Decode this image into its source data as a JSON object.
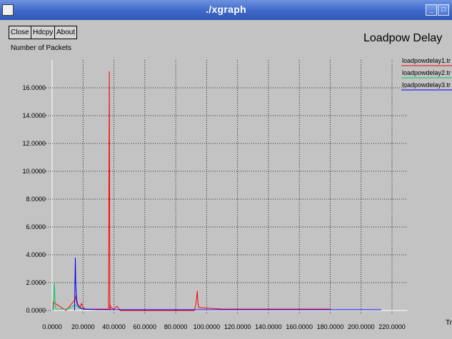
{
  "window": {
    "title": "./xgraph"
  },
  "toolbar": {
    "close_label": "Close",
    "hardcopy_label": "Hdcpy",
    "about_label": "About"
  },
  "chart_data": {
    "type": "line",
    "title": "Loadpow Delay",
    "ylabel": "Number of Packets",
    "xlabel": "Tr",
    "xlim": [
      0,
      220
    ],
    "ylim": [
      0,
      18
    ],
    "x_ticks": [
      "0.0000",
      "20.0000",
      "40.0000",
      "60.0000",
      "80.0000",
      "100.0000",
      "120.0000",
      "140.0000",
      "160.0000",
      "180.0000",
      "200.0000",
      "220.0000"
    ],
    "y_ticks": [
      "0.0000",
      "2.0000",
      "4.0000",
      "6.0000",
      "8.0000",
      "10.0000",
      "12.0000",
      "14.0000",
      "16.0000"
    ],
    "grid": true,
    "legend_position": "right",
    "series": [
      {
        "name": "loadpowdelay1.tr",
        "color": "#ff0000",
        "x": [
          0.5,
          0.6,
          9,
          15,
          15.5,
          16,
          17,
          18,
          19,
          20,
          22,
          25,
          30,
          35,
          36,
          36.5,
          37,
          37.4,
          37.6,
          38,
          40,
          42,
          44,
          92,
          93,
          94,
          94.3,
          95,
          96,
          110,
          180
        ],
        "y": [
          0,
          0.6,
          0,
          0.8,
          1.1,
          0.5,
          0.4,
          0.2,
          0.5,
          0.2,
          0.1,
          0.1,
          0.1,
          0.1,
          0.1,
          0.1,
          17.2,
          0,
          0.4,
          0.2,
          0.1,
          0.3,
          0,
          0,
          0.4,
          1.4,
          0.6,
          0.2,
          0.2,
          0.1,
          0.1
        ]
      },
      {
        "name": "loadpowdelay2.tr",
        "color": "#00cc66",
        "x": [
          0.8,
          1.5,
          2.0,
          2.5,
          10,
          15,
          17,
          20,
          30,
          60,
          100,
          150,
          200,
          210
        ],
        "y": [
          0,
          2.0,
          0.3,
          0.1,
          0.1,
          0.4,
          0.2,
          0.1,
          0.05,
          0.05,
          0.05,
          0.05,
          0.05,
          0.05
        ]
      },
      {
        "name": "loadpowdelay3.tr",
        "color": "#0000ff",
        "x": [
          14.5,
          15,
          15.3,
          15.8,
          16.5,
          18,
          20,
          30,
          40,
          60,
          100,
          150,
          200,
          213
        ],
        "y": [
          0,
          3.8,
          1.9,
          0.9,
          0.4,
          0.2,
          0.1,
          0.05,
          0.05,
          0.05,
          0.05,
          0.05,
          0.05,
          0.05
        ]
      }
    ]
  }
}
